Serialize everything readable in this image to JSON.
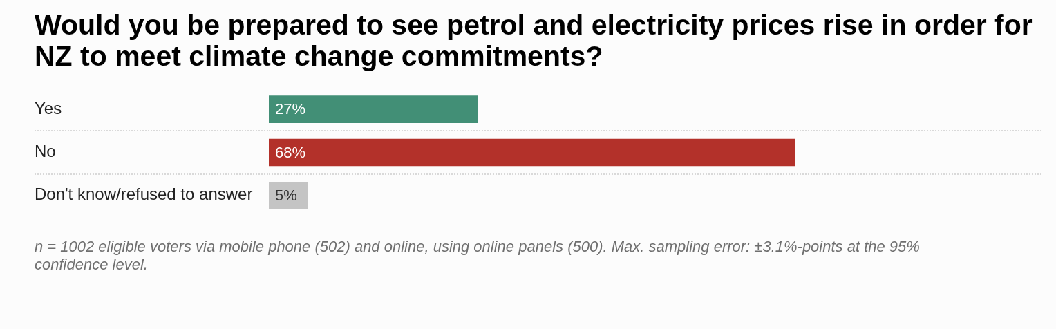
{
  "chart_data": {
    "type": "bar",
    "orientation": "horizontal",
    "title": "Would you be prepared to see petrol and electricity prices rise in order for NZ to meet climate change commitments?",
    "categories": [
      "Yes",
      "No",
      "Don't know/refused to answer"
    ],
    "values": [
      27,
      68,
      5
    ],
    "colors": [
      "#428f76",
      "#b3312a",
      "#c4c4c4"
    ],
    "value_labels": [
      "27%",
      "68%",
      "5%"
    ],
    "xlim": [
      0,
      100
    ],
    "tick_labels": "y",
    "grid": "y",
    "annotations": [
      "n = 1002 eligible voters via mobile phone (502) and online, using online panels (500). Max. sampling error: ±3.1%-points at the 95% confidence level."
    ]
  }
}
